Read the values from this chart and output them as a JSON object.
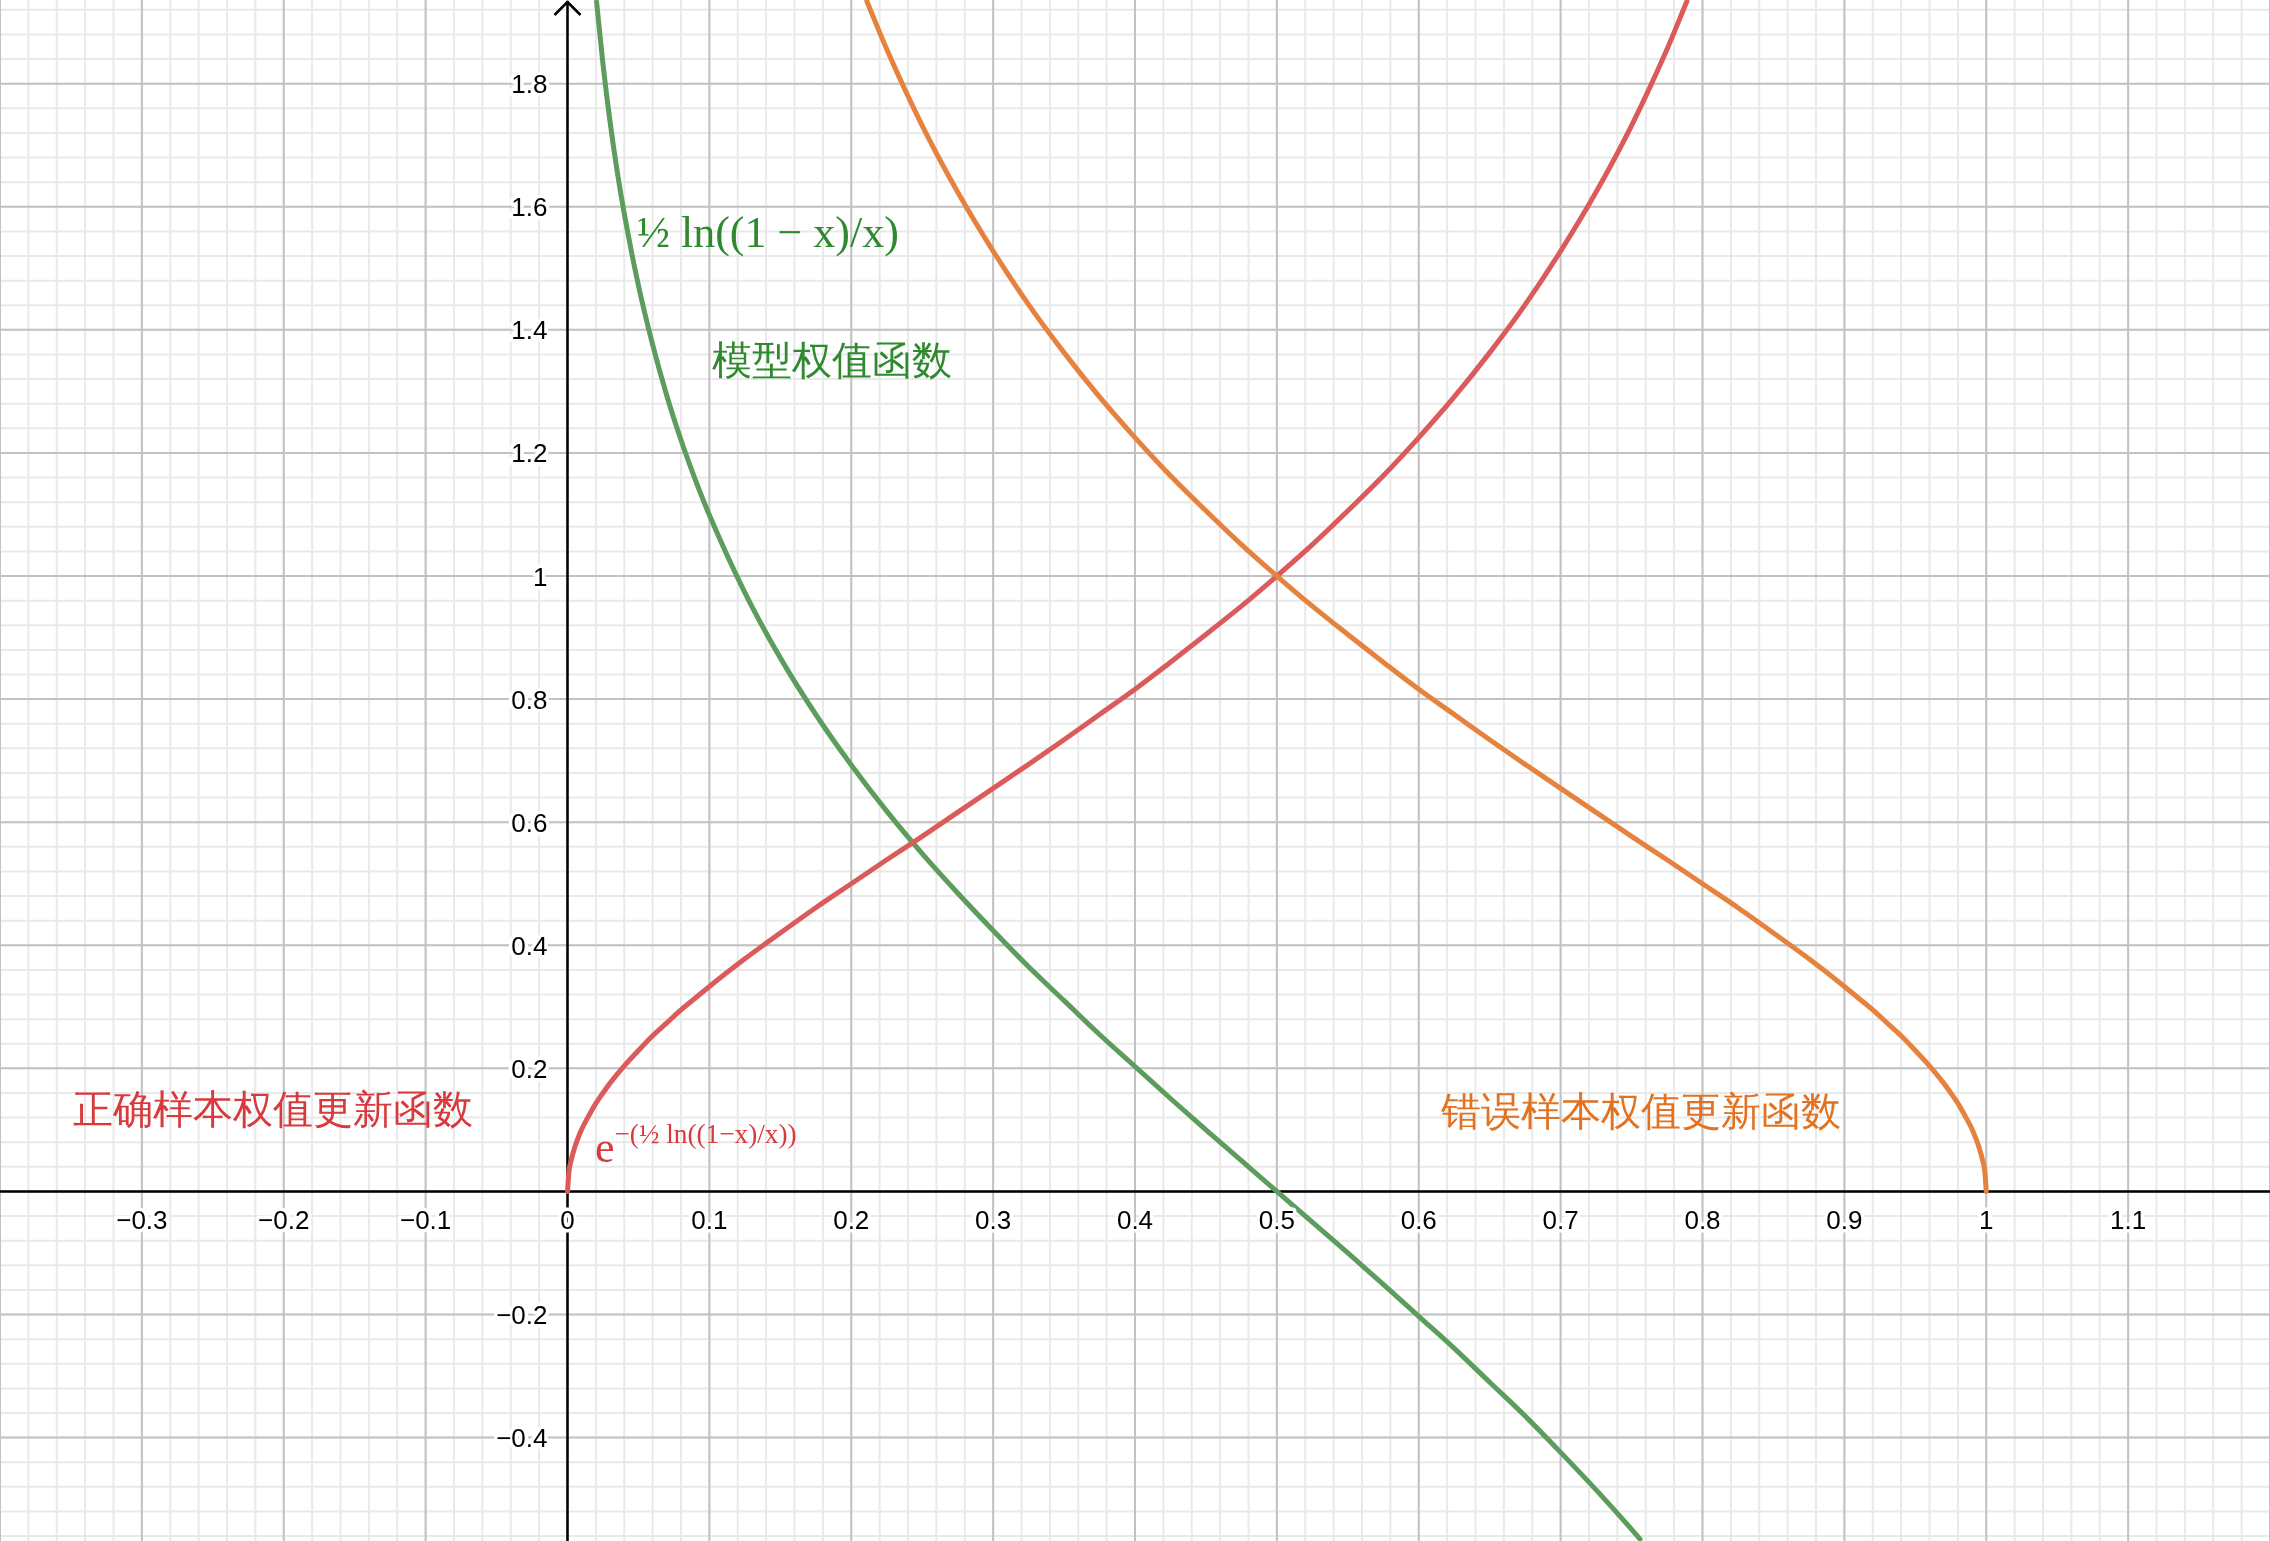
{
  "chart_data": {
    "type": "line",
    "xlim": [
      -0.4,
      1.2
    ],
    "ylim": [
      -0.568,
      1.936
    ],
    "grid": true,
    "xticks": [
      {
        "value": -0.4,
        "label": null
      },
      {
        "value": -0.3,
        "label": "−0.3"
      },
      {
        "value": -0.2,
        "label": "−0.2"
      },
      {
        "value": -0.1,
        "label": "−0.1"
      },
      0,
      0.1,
      0.2,
      0.3,
      0.4,
      0.5,
      0.6,
      0.7,
      0.8,
      0.9,
      1,
      1.1,
      {
        "value": 1.2,
        "label": null
      }
    ],
    "yticks": [
      {
        "value": -0.4,
        "label": "−0.4"
      },
      {
        "value": -0.2,
        "label": "−0.2"
      },
      {
        "value": 0,
        "label": null
      },
      0.2,
      0.4,
      0.6,
      0.8,
      1,
      1.2,
      1.4,
      1.6,
      1.8
    ],
    "series": [
      {
        "color": "#5c9c5c",
        "x": [
          0.0205,
          0.025,
          0.03,
          0.035,
          0.04,
          0.05,
          0.06,
          0.07,
          0.08,
          0.09,
          0.1,
          0.125,
          0.15,
          0.175,
          0.2,
          0.225,
          0.25,
          0.275,
          0.3,
          0.325,
          0.35,
          0.375,
          0.4,
          0.425,
          0.45,
          0.475,
          0.5,
          0.525,
          0.55,
          0.575,
          0.6,
          0.625,
          0.65,
          0.675,
          0.7,
          0.725,
          0.75,
          0.756
        ],
        "values": [
          1.933,
          1.832,
          1.738,
          1.658,
          1.589,
          1.472,
          1.376,
          1.293,
          1.221,
          1.157,
          1.099,
          0.973,
          0.867,
          0.775,
          0.693,
          0.618,
          0.549,
          0.485,
          0.424,
          0.365,
          0.31,
          0.255,
          0.203,
          0.151,
          0.1,
          0.05,
          0,
          -0.05,
          -0.1,
          -0.151,
          -0.203,
          -0.255,
          -0.31,
          -0.365,
          -0.424,
          -0.485,
          -0.549,
          -0.565
        ]
      },
      {
        "color": "#db5a5a",
        "x": [
          0,
          0.001,
          0.0025,
          0.005,
          0.0075,
          0.01,
          0.015,
          0.02,
          0.025,
          0.03,
          0.04,
          0.05,
          0.06,
          0.07,
          0.08,
          0.09,
          0.1,
          0.125,
          0.15,
          0.175,
          0.2,
          0.225,
          0.25,
          0.275,
          0.3,
          0.325,
          0.35,
          0.375,
          0.4,
          0.425,
          0.45,
          0.475,
          0.5,
          0.525,
          0.55,
          0.575,
          0.6,
          0.625,
          0.65,
          0.675,
          0.7,
          0.725,
          0.75,
          0.775,
          0.789
        ],
        "values": [
          0,
          0.032,
          0.05,
          0.071,
          0.087,
          0.101,
          0.123,
          0.143,
          0.16,
          0.176,
          0.204,
          0.229,
          0.253,
          0.274,
          0.295,
          0.314,
          0.333,
          0.378,
          0.42,
          0.461,
          0.5,
          0.539,
          0.577,
          0.616,
          0.655,
          0.694,
          0.734,
          0.775,
          0.816,
          0.86,
          0.905,
          0.951,
          1,
          1.051,
          1.106,
          1.163,
          1.225,
          1.291,
          1.363,
          1.441,
          1.528,
          1.624,
          1.732,
          1.856,
          1.934
        ]
      },
      {
        "color": "#e5823e",
        "x": [
          0.211,
          0.225,
          0.25,
          0.275,
          0.3,
          0.325,
          0.35,
          0.375,
          0.4,
          0.425,
          0.45,
          0.475,
          0.5,
          0.525,
          0.55,
          0.575,
          0.6,
          0.625,
          0.65,
          0.675,
          0.7,
          0.725,
          0.75,
          0.775,
          0.8,
          0.825,
          0.85,
          0.875,
          0.9,
          0.91,
          0.92,
          0.93,
          0.94,
          0.95,
          0.96,
          0.97,
          0.975,
          0.98,
          0.985,
          0.99,
          0.9925,
          0.995,
          0.9975,
          0.999,
          1
        ],
        "values": [
          1.934,
          1.856,
          1.732,
          1.624,
          1.528,
          1.441,
          1.363,
          1.291,
          1.225,
          1.163,
          1.106,
          1.051,
          1,
          0.951,
          0.905,
          0.86,
          0.816,
          0.775,
          0.734,
          0.694,
          0.655,
          0.616,
          0.577,
          0.539,
          0.5,
          0.461,
          0.42,
          0.378,
          0.333,
          0.314,
          0.295,
          0.274,
          0.253,
          0.229,
          0.204,
          0.176,
          0.16,
          0.143,
          0.123,
          0.101,
          0.087,
          0.071,
          0.05,
          0.032,
          0
        ]
      }
    ],
    "annotations": [
      "½ ln((1 − x)/x)",
      "模型权值函数",
      "正确样本权值更新函数",
      "e$^{−(½ ln((1−x)/x))}$",
      "错误样本权值更新函数"
    ]
  }
}
